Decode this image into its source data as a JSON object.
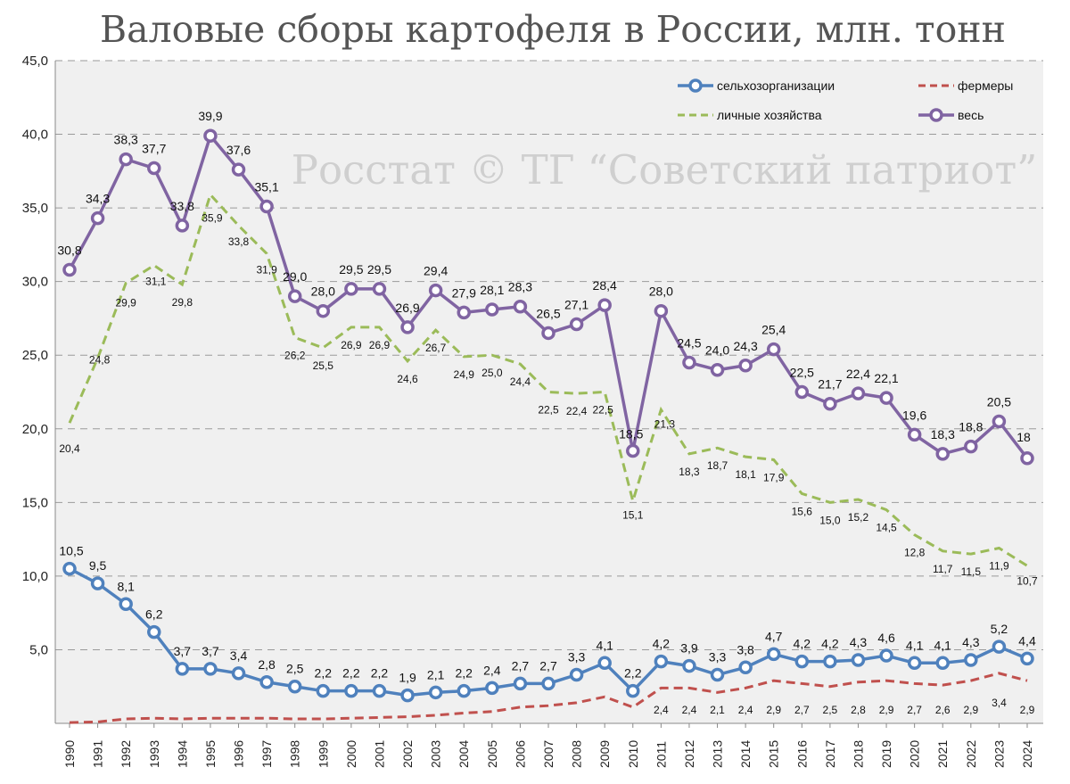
{
  "chart_data": {
    "type": "line",
    "title": "Валовые сборы картофеля в России, млн. тонн",
    "watermark": "Росстат © ТГ “Советский патриот”",
    "ylim": [
      0,
      45
    ],
    "yticks": [
      "",
      "5,0",
      "10,0",
      "15,0",
      "20,0",
      "25,0",
      "30,0",
      "35,0",
      "40,0",
      "45,0"
    ],
    "grid": true,
    "legend_placement": "top-right",
    "categories": [
      "1990",
      "1991",
      "1992",
      "1993",
      "1994",
      "1995",
      "1996",
      "1997",
      "1998",
      "1999",
      "2000",
      "2001",
      "2002",
      "2003",
      "2004",
      "2005",
      "2006",
      "2007",
      "2008",
      "2009",
      "2010",
      "2011",
      "2012",
      "2013",
      "2014",
      "2015",
      "2016",
      "2017",
      "2018",
      "2019",
      "2020",
      "2021",
      "2022",
      "2023",
      "2024"
    ],
    "series": [
      {
        "key": "org",
        "name": "сельхозорганизации",
        "color": "#4f81bd",
        "style": "solid-markers",
        "values": [
          10.5,
          9.5,
          8.1,
          6.2,
          3.7,
          3.7,
          3.4,
          2.8,
          2.5,
          2.2,
          2.2,
          2.2,
          1.9,
          2.1,
          2.2,
          2.4,
          2.7,
          2.7,
          3.3,
          4.1,
          2.2,
          4.2,
          3.9,
          3.3,
          3.8,
          4.7,
          4.2,
          4.2,
          4.3,
          4.6,
          4.1,
          4.1,
          4.3,
          5.2,
          4.4
        ],
        "labels": [
          "10,5",
          "9,5",
          "8,1",
          "6,2",
          "3,7",
          "3,7",
          "3,4",
          "2,8",
          "2,5",
          "2,2",
          "2,2",
          "2,2",
          "1,9",
          "2,1",
          "2,2",
          "2,4",
          "2,7",
          "2,7",
          "3,3",
          "4,1",
          "2,2",
          "4,2",
          "3,9",
          "3,3",
          "3,8",
          "4,7",
          "4,2",
          "4,2",
          "4,3",
          "4,6",
          "4,1",
          "4,1",
          "4,3",
          "5,2",
          "4,4"
        ]
      },
      {
        "key": "farm",
        "name": "фермеры",
        "color": "#c0504d",
        "style": "dashed",
        "values": [
          0.05,
          0.1,
          0.3,
          0.35,
          0.3,
          0.35,
          0.35,
          0.35,
          0.3,
          0.3,
          0.35,
          0.4,
          0.45,
          0.55,
          0.7,
          0.8,
          1.1,
          1.2,
          1.4,
          1.8,
          1.1,
          2.4,
          2.4,
          2.1,
          2.4,
          2.9,
          2.7,
          2.5,
          2.8,
          2.9,
          2.7,
          2.6,
          2.9,
          3.4,
          2.9
        ],
        "labels": [
          "",
          "",
          "",
          "",
          "",
          "",
          "",
          "",
          "",
          "",
          "",
          "",
          "",
          "",
          "",
          "",
          "",
          "",
          "",
          "",
          "",
          "2,4",
          "2,4",
          "2,1",
          "2,4",
          "2,9",
          "2,7",
          "2,5",
          "2,8",
          "2,9",
          "2,7",
          "2,6",
          "2,9",
          "3,4",
          "2,9"
        ]
      },
      {
        "key": "personal",
        "name": "личные хозяйства",
        "color": "#9bbb59",
        "style": "dashed",
        "values": [
          20.4,
          24.8,
          29.9,
          31.1,
          29.8,
          35.9,
          33.8,
          31.9,
          26.2,
          25.5,
          26.9,
          26.9,
          24.6,
          26.7,
          24.9,
          25.0,
          24.4,
          22.5,
          22.4,
          22.5,
          15.1,
          21.3,
          18.3,
          18.7,
          18.1,
          17.9,
          15.6,
          15.0,
          15.2,
          14.5,
          12.8,
          11.7,
          11.5,
          11.9,
          10.7
        ],
        "labels": [
          "20,4",
          "24,8",
          "29,9",
          "31,1",
          "29,8",
          "35,9",
          "33,8",
          "31,9",
          "26,2",
          "25,5",
          "26,9",
          "26,9",
          "24,6",
          "26,7",
          "24,9",
          "25,0",
          "24,4",
          "22,5",
          "22,4",
          "22,5",
          "15,1",
          "21,3",
          "18,3",
          "18,7",
          "18,1",
          "17,9",
          "15,6",
          "15,0",
          "15,2",
          "14,5",
          "12,8",
          "11,7",
          "11,5",
          "11,9",
          "10,7"
        ]
      },
      {
        "key": "total",
        "name": "весь",
        "color": "#8064a2",
        "style": "solid-markers",
        "values": [
          30.8,
          34.3,
          38.3,
          37.7,
          33.8,
          39.9,
          37.6,
          35.1,
          29.0,
          28.0,
          29.5,
          29.5,
          26.9,
          29.4,
          27.9,
          28.1,
          28.3,
          26.5,
          27.1,
          28.4,
          18.5,
          28.0,
          24.5,
          24.0,
          24.3,
          25.4,
          22.5,
          21.7,
          22.4,
          22.1,
          19.6,
          18.3,
          18.8,
          20.5,
          18
        ],
        "labels": [
          "30,8",
          "34,3",
          "38,3",
          "37,7",
          "33,8",
          "39,9",
          "37,6",
          "35,1",
          "29,0",
          "28,0",
          "29,5",
          "29,5",
          "26,9",
          "29,4",
          "27,9",
          "28,1",
          "28,3",
          "26,5",
          "27,1",
          "28,4",
          "18,5",
          "28,0",
          "24,5",
          "24,0",
          "24,3",
          "25,4",
          "22,5",
          "21,7",
          "22,4",
          "22,1",
          "19,6",
          "18,3",
          "18,8",
          "20,5",
          "18"
        ]
      }
    ]
  }
}
